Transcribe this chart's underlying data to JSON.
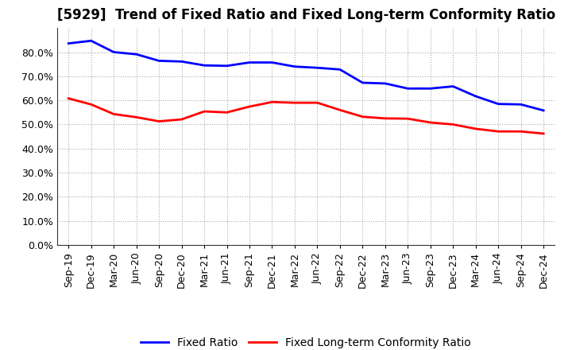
{
  "title": "[5929]  Trend of Fixed Ratio and Fixed Long-term Conformity Ratio",
  "x_labels": [
    "Sep-19",
    "Dec-19",
    "Mar-20",
    "Jun-20",
    "Sep-20",
    "Dec-20",
    "Mar-21",
    "Jun-21",
    "Sep-21",
    "Dec-21",
    "Mar-22",
    "Jun-22",
    "Sep-22",
    "Dec-22",
    "Mar-23",
    "Jun-23",
    "Sep-23",
    "Dec-23",
    "Mar-24",
    "Jun-24",
    "Sep-24",
    "Dec-24"
  ],
  "fixed_ratio": [
    0.836,
    0.847,
    0.8,
    0.791,
    0.764,
    0.761,
    0.745,
    0.743,
    0.757,
    0.757,
    0.74,
    0.735,
    0.728,
    0.673,
    0.67,
    0.649,
    0.649,
    0.658,
    0.617,
    0.585,
    0.583,
    0.558
  ],
  "fixed_lt_ratio": [
    0.608,
    0.583,
    0.543,
    0.53,
    0.513,
    0.521,
    0.554,
    0.55,
    0.574,
    0.593,
    0.59,
    0.59,
    0.56,
    0.532,
    0.525,
    0.524,
    0.508,
    0.5,
    0.482,
    0.471,
    0.471,
    0.462
  ],
  "fixed_ratio_color": "#0000FF",
  "fixed_lt_ratio_color": "#FF0000",
  "ylim": [
    0.0,
    0.9
  ],
  "yticks": [
    0.0,
    0.1,
    0.2,
    0.3,
    0.4,
    0.5,
    0.6,
    0.7,
    0.8
  ],
  "grid_color": "#aaaaaa",
  "bg_color": "#ffffff",
  "plot_bg_color": "#ffffff",
  "legend_fixed": "Fixed Ratio",
  "legend_lt": "Fixed Long-term Conformity Ratio",
  "title_fontsize": 12,
  "axis_fontsize": 9,
  "legend_fontsize": 10,
  "line_width": 2.0
}
